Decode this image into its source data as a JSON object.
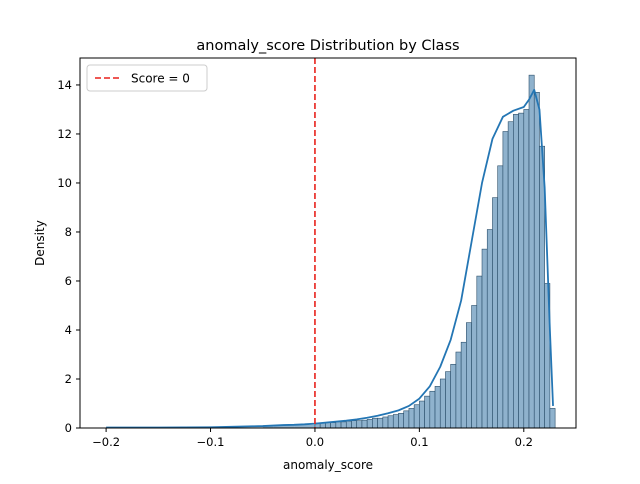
{
  "chart_data": {
    "type": "histogram",
    "title": "anomaly_score Distribution by Class",
    "xlabel": "anomaly_score",
    "ylabel": "Density",
    "xlim": [
      -0.225,
      0.25
    ],
    "ylim": [
      0,
      15.1
    ],
    "xticks": [
      {
        "value": -0.2,
        "label": "−0.2"
      },
      {
        "value": -0.1,
        "label": "−0.1"
      },
      {
        "value": 0.0,
        "label": "0.0"
      },
      {
        "value": 0.1,
        "label": "0.1"
      },
      {
        "value": 0.2,
        "label": "0.2"
      }
    ],
    "yticks": [
      {
        "value": 0,
        "label": "0"
      },
      {
        "value": 2,
        "label": "2"
      },
      {
        "value": 4,
        "label": "4"
      },
      {
        "value": 6,
        "label": "6"
      },
      {
        "value": 8,
        "label": "8"
      },
      {
        "value": 10,
        "label": "10"
      },
      {
        "value": 12,
        "label": "12"
      },
      {
        "value": 14,
        "label": "14"
      }
    ],
    "grid": false,
    "legend": {
      "position": "upper-left",
      "entries": [
        {
          "label": "Score = 0",
          "style": "dashed",
          "color": "#e8211c"
        }
      ]
    },
    "vline": {
      "x": 0,
      "color": "#e8211c",
      "style": "dashed"
    },
    "colors": {
      "bar_fill": "#8fb2cd",
      "bar_edge": "#2a4e6a",
      "kde": "#2476b4",
      "baseline": "#e07b39"
    },
    "bins": {
      "start": 0.0,
      "width": 0.005,
      "values": [
        0.2,
        0.2,
        0.22,
        0.22,
        0.25,
        0.25,
        0.28,
        0.3,
        0.3,
        0.32,
        0.35,
        0.4,
        0.4,
        0.45,
        0.5,
        0.55,
        0.6,
        0.7,
        0.8,
        0.95,
        1.1,
        1.3,
        1.5,
        1.7,
        2.0,
        2.3,
        2.6,
        3.1,
        3.5,
        4.3,
        5.0,
        6.2,
        7.3,
        8.1,
        9.4,
        10.7,
        12.1,
        12.5,
        12.8,
        12.85,
        13.0,
        14.4,
        13.7,
        11.5,
        5.9,
        0.8
      ]
    },
    "lowtail": {
      "start": -0.2,
      "end": 0.0,
      "description_values": [
        [
          -0.2,
          0.02
        ],
        [
          -0.1,
          0.03
        ],
        [
          -0.05,
          0.08
        ],
        [
          -0.04,
          0.12
        ],
        [
          -0.02,
          0.13
        ],
        [
          0.0,
          0.18
        ]
      ]
    },
    "kde": {
      "x": [
        -0.2,
        -0.15,
        -0.1,
        -0.08,
        -0.06,
        -0.05,
        -0.04,
        -0.03,
        -0.02,
        -0.01,
        0.0,
        0.01,
        0.02,
        0.03,
        0.04,
        0.05,
        0.06,
        0.07,
        0.08,
        0.09,
        0.1,
        0.11,
        0.12,
        0.13,
        0.14,
        0.15,
        0.16,
        0.17,
        0.18,
        0.19,
        0.2,
        0.205,
        0.21,
        0.215,
        0.22,
        0.225,
        0.228
      ],
      "y": [
        0.02,
        0.02,
        0.03,
        0.05,
        0.07,
        0.08,
        0.1,
        0.12,
        0.13,
        0.15,
        0.18,
        0.22,
        0.26,
        0.3,
        0.35,
        0.42,
        0.5,
        0.6,
        0.72,
        0.9,
        1.2,
        1.7,
        2.5,
        3.6,
        5.2,
        7.6,
        10.0,
        11.8,
        12.7,
        12.95,
        13.1,
        13.4,
        13.8,
        13.0,
        9.8,
        4.0,
        0.9
      ]
    }
  }
}
